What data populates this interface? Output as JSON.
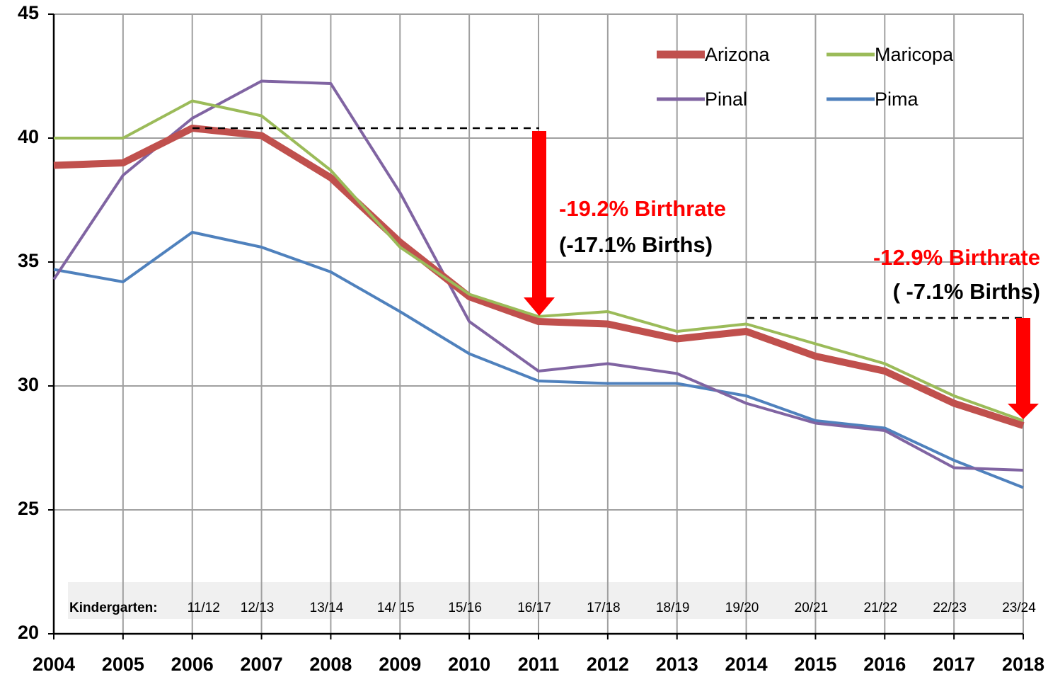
{
  "chart_data": {
    "type": "line",
    "x": [
      2004,
      2005,
      2006,
      2007,
      2008,
      2009,
      2010,
      2011,
      2012,
      2013,
      2014,
      2015,
      2016,
      2017,
      2018
    ],
    "xlim": [
      2004,
      2018
    ],
    "xticks": [
      2004,
      2005,
      2006,
      2007,
      2008,
      2009,
      2010,
      2011,
      2012,
      2013,
      2014,
      2015,
      2016,
      2017,
      2018
    ],
    "ylim": [
      20,
      45
    ],
    "yticks": [
      20,
      25,
      30,
      35,
      40,
      45
    ],
    "grid": true,
    "series": [
      {
        "name": "Arizona",
        "color": "#c0504d",
        "values": [
          38.9,
          39.0,
          40.4,
          40.1,
          38.4,
          35.8,
          33.6,
          32.6,
          32.5,
          31.9,
          32.2,
          31.2,
          30.6,
          29.3,
          28.4
        ]
      },
      {
        "name": "Maricopa",
        "color": "#9bbb59",
        "values": [
          40.0,
          40.0,
          41.5,
          40.9,
          38.7,
          35.6,
          33.7,
          32.8,
          33.0,
          32.2,
          32.5,
          31.7,
          30.9,
          29.6,
          28.6
        ]
      },
      {
        "name": "Pinal",
        "color": "#8064a2",
        "values": [
          34.3,
          38.5,
          40.8,
          42.3,
          42.2,
          37.8,
          32.6,
          30.6,
          30.9,
          30.5,
          29.3,
          28.5,
          28.2,
          26.7,
          26.6
        ]
      },
      {
        "name": "Pima",
        "color": "#4f81bd",
        "values": [
          34.7,
          34.2,
          36.2,
          35.6,
          34.6,
          33.0,
          31.3,
          30.2,
          30.1,
          30.1,
          29.6,
          28.6,
          28.3,
          27.0,
          25.9
        ]
      }
    ],
    "annotations": [
      "-19.2% Birthrate",
      "(-17.1% Births)",
      "-12.9% Birthrate",
      "( -7.1% Births)"
    ],
    "kindergarten": {
      "label": "Kindergarten:",
      "years": [
        "11/12",
        "12/13",
        "13/14",
        "14/ 15",
        "15/16",
        "16/17",
        "17/18",
        "18/19",
        "19/20",
        "20/21",
        "21/22",
        "22/23",
        "23/24"
      ]
    }
  }
}
